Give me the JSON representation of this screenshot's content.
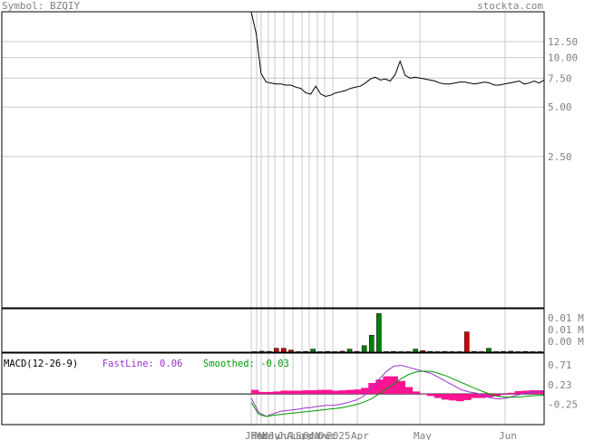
{
  "header": {
    "symbol_label": "Symbol: BZQIY",
    "site": "stockta.com"
  },
  "colors": {
    "text_gray": "#808080",
    "volume_up": "#008000",
    "volume_down": "#cc0000",
    "histogram": "#ff1493",
    "fast_line": "#9933cc",
    "smoothed_line": "#009900",
    "price_line": "#000000"
  },
  "chart_data": [
    {
      "type": "line",
      "panel": "price",
      "title": "",
      "yscale": "log",
      "ylim": [
        0.3,
        19
      ],
      "y_ticks": [
        12.5,
        10.0,
        7.5,
        5.0,
        2.5
      ],
      "y_tick_labels": [
        "12.50",
        "10.00",
        "7.50",
        "5.00",
        "2.50"
      ],
      "x_labels": [
        "Jan",
        "Feb",
        "Mar",
        "May",
        "Jun",
        "Jul",
        "Aug",
        "Sep",
        "Oct",
        "Nov",
        "Dec",
        "2025",
        "Apr",
        "May",
        "Jun"
      ],
      "series": [
        {
          "values": [
            19,
            14,
            8,
            7.1,
            7.0,
            6.9,
            6.9,
            6.8,
            6.8,
            6.6,
            6.5,
            6.1,
            6.0,
            6.7,
            6.0,
            5.8,
            5.9,
            6.1,
            6.2,
            6.3,
            6.5,
            6.6,
            6.7,
            7.0,
            7.4,
            7.6,
            7.3,
            7.4,
            7.2,
            7.9,
            9.5,
            7.8,
            7.5,
            7.6,
            7.5,
            7.4,
            7.3,
            7.2,
            7.0,
            6.9,
            6.9,
            7.0,
            7.1,
            7.1,
            7.0,
            6.9,
            7.0,
            7.1,
            7.0,
            6.8,
            6.8,
            6.9,
            7.0,
            7.1,
            7.2,
            6.9,
            7.0,
            7.2,
            7.0,
            7.3
          ]
        }
      ]
    },
    {
      "type": "bar",
      "panel": "volume",
      "ylabel": "",
      "y_tick_labels": [
        "0.01 M",
        "0.01 M",
        "0.00 M"
      ],
      "series": [
        {
          "name": "volume",
          "values": [
            0.0002,
            0.0004,
            0.0003,
            0.0015,
            0.0015,
            0.0008,
            0.0002,
            0.0003,
            0.0012,
            0.0002,
            0.0003,
            0.0002,
            0.0004,
            0.0012,
            0.0003,
            0.0025,
            0.0065,
            0.0148,
            0.0002,
            0.0003,
            0.0002,
            0.0002,
            0.0012,
            0.0006,
            0.0003,
            0.0002,
            0.0003,
            0.0002,
            0.0002,
            0.0078,
            0.0003,
            0.0002,
            0.0015,
            0.0002,
            0.0003,
            0.0004,
            0.0002,
            0.0003,
            0.0002,
            0.0002
          ],
          "up": [
            false,
            false,
            true,
            false,
            false,
            false,
            true,
            false,
            true,
            false,
            false,
            true,
            false,
            true,
            false,
            true,
            true,
            true,
            false,
            true,
            false,
            true,
            true,
            false,
            true,
            false,
            true,
            false,
            true,
            false,
            true,
            false,
            true,
            false,
            true,
            false,
            true,
            false,
            true,
            false
          ]
        }
      ]
    },
    {
      "type": "line",
      "panel": "macd",
      "title": "MACD(12-26-9)",
      "fast_label": "FastLine: 0.06",
      "smoothed_label": "Smoothed: -0.03",
      "ylim": [
        -0.75,
        1.0
      ],
      "y_ticks": [
        0.71,
        0.23,
        -0.25
      ],
      "y_tick_labels": [
        "0.71",
        "0.23",
        "-0.25"
      ],
      "zero_line": 0.0,
      "series": [
        {
          "name": "FastLine",
          "values": [
            -0.1,
            -0.45,
            -0.55,
            -0.48,
            -0.42,
            -0.4,
            -0.38,
            -0.35,
            -0.33,
            -0.3,
            -0.28,
            -0.28,
            -0.25,
            -0.2,
            -0.15,
            -0.05,
            0.15,
            0.35,
            0.55,
            0.68,
            0.7,
            0.65,
            0.6,
            0.55,
            0.5,
            0.4,
            0.3,
            0.2,
            0.1,
            0.05,
            0.02,
            -0.05,
            -0.1,
            -0.12,
            -0.1,
            -0.05,
            0.0,
            0.03,
            0.05,
            0.06
          ]
        },
        {
          "name": "Smoothed",
          "values": [
            -0.2,
            -0.5,
            -0.55,
            -0.52,
            -0.5,
            -0.48,
            -0.46,
            -0.44,
            -0.42,
            -0.4,
            -0.38,
            -0.36,
            -0.34,
            -0.3,
            -0.26,
            -0.2,
            -0.12,
            0.0,
            0.12,
            0.25,
            0.38,
            0.48,
            0.54,
            0.56,
            0.55,
            0.5,
            0.44,
            0.36,
            0.28,
            0.2,
            0.12,
            0.05,
            -0.02,
            -0.06,
            -0.08,
            -0.08,
            -0.07,
            -0.05,
            -0.04,
            -0.03
          ]
        },
        {
          "name": "Histogram",
          "values": [
            0.1,
            0.05,
            0.05,
            0.06,
            0.08,
            0.08,
            0.08,
            0.09,
            0.09,
            0.1,
            0.1,
            0.08,
            0.09,
            0.1,
            0.11,
            0.15,
            0.27,
            0.35,
            0.43,
            0.43,
            0.32,
            0.17,
            0.06,
            -0.01,
            -0.05,
            -0.1,
            -0.14,
            -0.16,
            -0.18,
            -0.15,
            -0.1,
            -0.1,
            -0.08,
            -0.06,
            -0.02,
            0.03,
            0.07,
            0.08,
            0.09,
            0.09
          ]
        }
      ]
    }
  ]
}
